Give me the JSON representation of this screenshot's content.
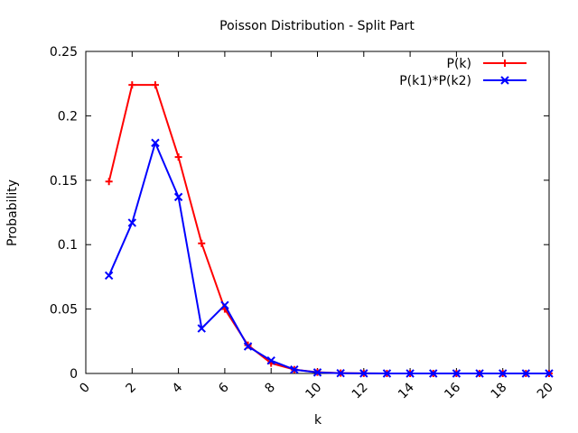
{
  "chart_data": {
    "type": "line",
    "title": "Poisson Distribution - Split Part",
    "xlabel": "k",
    "ylabel": "Probability",
    "xlim": [
      0,
      20
    ],
    "ylim": [
      0,
      0.25
    ],
    "xticks": [
      "0",
      "2",
      "4",
      "6",
      "8",
      "10",
      "12",
      "14",
      "16",
      "18",
      "20"
    ],
    "yticks": [
      "0",
      "0.05",
      "0.1",
      "0.15",
      "0.2",
      "0.25"
    ],
    "grid": false,
    "legend_position": "top-right",
    "series": [
      {
        "name": "P(k)",
        "color": "#ff0000",
        "marker": "plus",
        "x": [
          1,
          2,
          3,
          4,
          5,
          6,
          7,
          8,
          9,
          10,
          11,
          12,
          13,
          14,
          15,
          16,
          17,
          18,
          19,
          20
        ],
        "y": [
          0.149,
          0.224,
          0.224,
          0.168,
          0.101,
          0.05,
          0.022,
          0.008,
          0.003,
          0.001,
          0.0003,
          0.0001,
          0,
          0,
          0,
          0,
          0,
          0,
          0,
          0
        ]
      },
      {
        "name": "P(k1)*P(k2)",
        "color": "#0000ff",
        "marker": "cross",
        "x": [
          1,
          2,
          3,
          4,
          5,
          6,
          7,
          8,
          9,
          10,
          11,
          12,
          13,
          14,
          15,
          16,
          17,
          18,
          19,
          20
        ],
        "y": [
          0.076,
          0.117,
          0.179,
          0.137,
          0.035,
          0.053,
          0.021,
          0.01,
          0.003,
          0.0008,
          0.0002,
          0.0001,
          0,
          0,
          0,
          0,
          0,
          0,
          0,
          0
        ]
      }
    ]
  }
}
